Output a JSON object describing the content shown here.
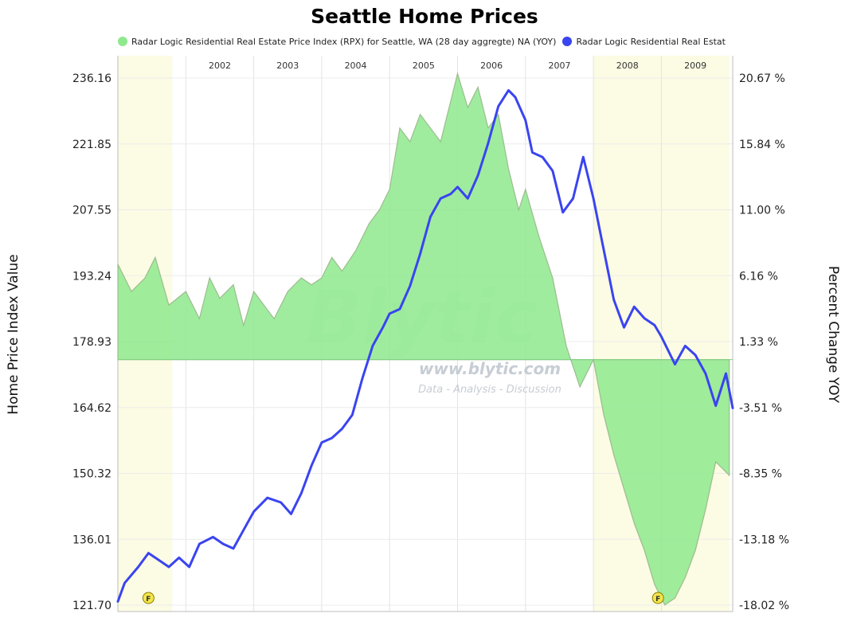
{
  "chart_data": {
    "type": "area",
    "title": "Seattle Home Prices",
    "legend": [
      {
        "label": "Radar Logic Residential Real Estate Price Index (RPX) for Seattle, WA (28 day aggregte) NA (YOY)",
        "color": "#8ee98e"
      },
      {
        "label": "Radar Logic Residential Real Estat",
        "color": "#3a44f0"
      }
    ],
    "ylabel_left": "Home Price Index Value",
    "ylabel_right": "Percent Change YOY",
    "yticks_left": [
      "236.16",
      "221.85",
      "207.55",
      "193.24",
      "178.93",
      "164.62",
      "150.32",
      "136.01",
      "121.70"
    ],
    "yticks_right": [
      "20.67 %",
      "15.84 %",
      "11.00 %",
      "6.16 %",
      "1.33 %",
      "-3.51 %",
      "-8.35 %",
      "-13.18 %",
      "-18.02 %"
    ],
    "ylim_left": [
      121.7,
      236.16
    ],
    "ylim_right": [
      -18.02,
      20.67
    ],
    "xlim": [
      2001.0,
      2010.05
    ],
    "years": [
      "2002",
      "2003",
      "2004",
      "2005",
      "2006",
      "2007",
      "2008",
      "2009"
    ],
    "recessions": [
      [
        2001.0,
        2001.8
      ],
      [
        2008.0,
        2010.0
      ]
    ],
    "markers": [
      {
        "label": "F",
        "x": 2001.45
      },
      {
        "label": "F",
        "x": 2008.95
      }
    ],
    "watermark": {
      "brand": "Blytic",
      "url": "www.blytic.com",
      "tagline": "Data - Analysis - Discussion"
    },
    "series": [
      {
        "name": "Percent Change YOY",
        "axis": "right",
        "color": "#8ee98e",
        "x": [
          2001.0,
          2001.2,
          2001.4,
          2001.55,
          2001.75,
          2002.0,
          2002.2,
          2002.35,
          2002.5,
          2002.7,
          2002.85,
          2003.0,
          2003.15,
          2003.3,
          2003.5,
          2003.7,
          2003.85,
          2004.0,
          2004.15,
          2004.3,
          2004.5,
          2004.7,
          2004.85,
          2005.0,
          2005.15,
          2005.3,
          2005.45,
          2005.6,
          2005.75,
          2005.9,
          2006.0,
          2006.15,
          2006.3,
          2006.45,
          2006.6,
          2006.75,
          2006.9,
          2007.0,
          2007.2,
          2007.4,
          2007.6,
          2007.8,
          2008.0,
          2008.15,
          2008.3,
          2008.45,
          2008.6,
          2008.75,
          2008.9,
          2009.05,
          2009.2,
          2009.35,
          2009.5,
          2009.65,
          2009.8,
          2010.0
        ],
        "values": [
          7.0,
          5.0,
          6.0,
          7.5,
          4.0,
          5.0,
          3.0,
          6.0,
          4.5,
          5.5,
          2.5,
          5.0,
          4.0,
          3.0,
          5.0,
          6.0,
          5.5,
          6.0,
          7.5,
          6.5,
          8.0,
          10.0,
          11.0,
          12.5,
          17.0,
          16.0,
          18.0,
          17.0,
          16.0,
          19.0,
          21.0,
          18.5,
          20.0,
          17.0,
          18.0,
          14.0,
          11.0,
          12.5,
          9.0,
          6.0,
          1.0,
          -2.0,
          0.0,
          -4.0,
          -7.0,
          -9.5,
          -12.0,
          -14.0,
          -16.5,
          -18.0,
          -17.5,
          -16.0,
          -14.0,
          -11.0,
          -7.5,
          -8.5
        ]
      },
      {
        "name": "Home Price Index Value",
        "axis": "left",
        "color": "#3a44f0",
        "x": [
          2001.0,
          2001.1,
          2001.3,
          2001.45,
          2001.6,
          2001.75,
          2001.9,
          2002.05,
          2002.2,
          2002.4,
          2002.55,
          2002.7,
          2002.85,
          2003.0,
          2003.2,
          2003.4,
          2003.55,
          2003.7,
          2003.85,
          2004.0,
          2004.15,
          2004.3,
          2004.45,
          2004.6,
          2004.75,
          2004.9,
          2005.0,
          2005.15,
          2005.3,
          2005.45,
          2005.6,
          2005.75,
          2005.9,
          2006.0,
          2006.15,
          2006.3,
          2006.45,
          2006.6,
          2006.75,
          2006.85,
          2007.0,
          2007.1,
          2007.25,
          2007.4,
          2007.55,
          2007.7,
          2007.85,
          2008.0,
          2008.15,
          2008.3,
          2008.45,
          2008.6,
          2008.75,
          2008.9,
          2009.0,
          2009.2,
          2009.35,
          2009.5,
          2009.65,
          2009.8,
          2009.95,
          2010.05
        ],
        "values": [
          122.5,
          126.5,
          130.0,
          133.0,
          131.5,
          130.0,
          132.0,
          130.0,
          135.0,
          136.5,
          135.0,
          134.0,
          138.0,
          142.0,
          145.0,
          144.0,
          141.5,
          146.0,
          152.0,
          157.0,
          158.0,
          160.0,
          163.0,
          171.0,
          178.0,
          182.0,
          185.0,
          186.0,
          191.0,
          198.0,
          206.0,
          210.0,
          211.0,
          212.5,
          210.0,
          215.0,
          222.0,
          230.0,
          233.5,
          232.0,
          227.0,
          220.0,
          219.0,
          216.0,
          207.0,
          210.0,
          219.0,
          210.0,
          199.0,
          188.0,
          182.0,
          186.5,
          184.0,
          182.5,
          180.0,
          174.0,
          178.0,
          176.0,
          172.0,
          165.0,
          172.0,
          164.5
        ]
      }
    ]
  }
}
